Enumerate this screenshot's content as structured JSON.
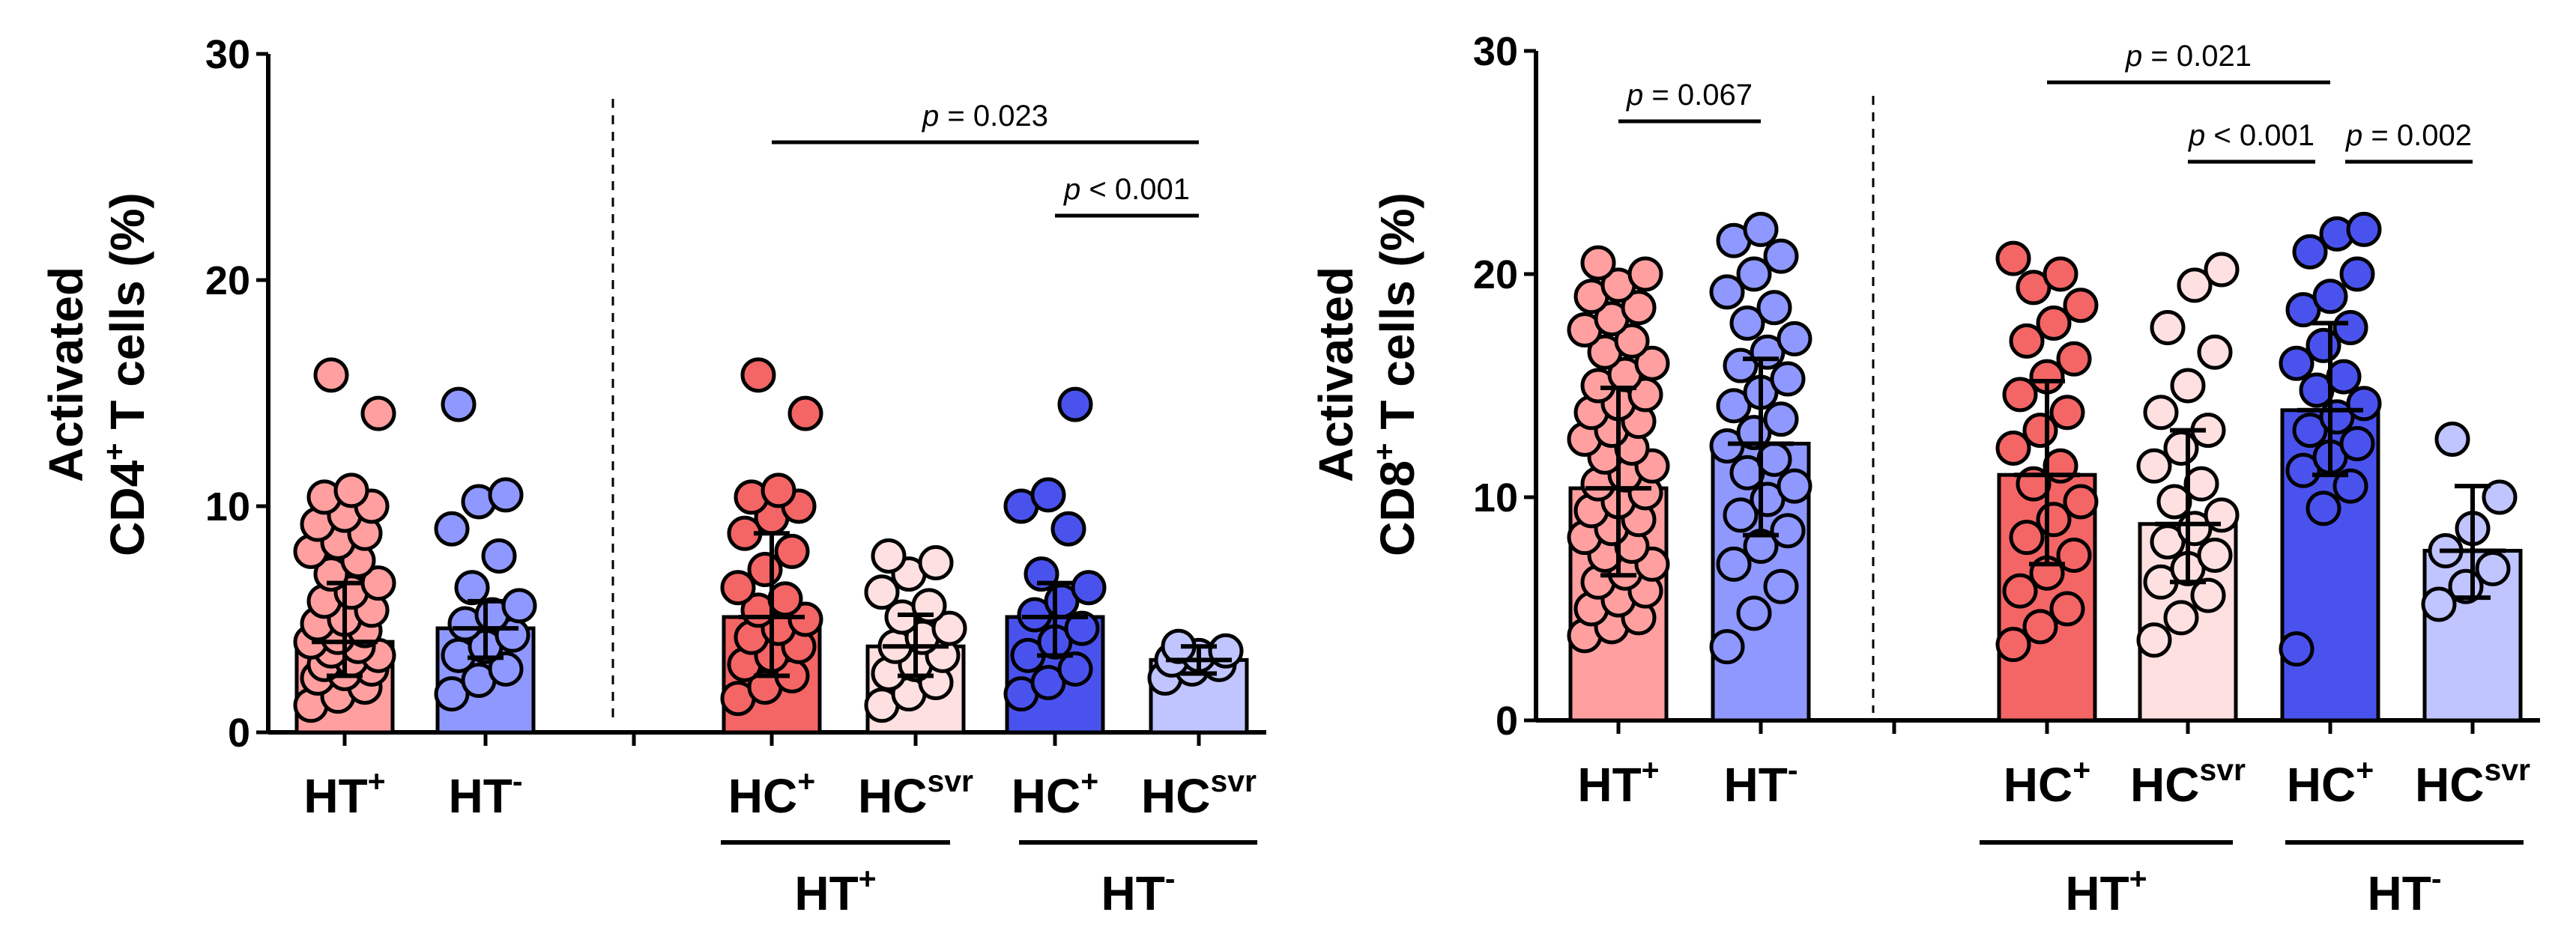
{
  "chart_data": [
    {
      "type": "bar",
      "panel": "left",
      "ylabel_line1": "Activated",
      "ylabel_line2_prefix": "CD4",
      "ylabel_line2_sup": "+",
      "ylabel_line2_suffix": " T cells (%)",
      "ylim": [
        0,
        30
      ],
      "yticks": [
        "0",
        "10",
        "20",
        "30"
      ],
      "categories": [
        {
          "label": "HT",
          "sup": "+",
          "mean": 4.0,
          "sd_low": 2.5,
          "sd_high": 6.6,
          "color": "#ff9f9f",
          "points": [
            1.2,
            1.6,
            2.0,
            2.4,
            2.6,
            2.8,
            3.0,
            3.2,
            3.4,
            3.6,
            3.8,
            4.0,
            4.2,
            4.5,
            4.8,
            5.0,
            5.4,
            5.8,
            6.2,
            6.6,
            7.0,
            7.6,
            8.0,
            8.4,
            8.8,
            9.2,
            9.6,
            10.0,
            10.4,
            10.7,
            14.1,
            15.8
          ]
        },
        {
          "label": "HT",
          "sup": "-",
          "mean": 4.6,
          "sd_low": 3.3,
          "sd_high": 5.8,
          "color": "#8f98ff",
          "points": [
            1.7,
            2.3,
            2.8,
            3.4,
            3.8,
            4.3,
            4.8,
            5.2,
            5.6,
            6.4,
            7.8,
            9.0,
            10.2,
            10.5,
            14.5
          ]
        },
        {
          "label": "HC",
          "sup": "+",
          "mean": 5.1,
          "sd_low": 2.5,
          "sd_high": 8.8,
          "color": "#f46565",
          "points": [
            1.5,
            2.0,
            2.5,
            3.0,
            3.4,
            3.8,
            4.2,
            4.6,
            5.0,
            5.4,
            5.9,
            6.4,
            7.2,
            8.0,
            8.8,
            9.5,
            10.0,
            10.4,
            10.7,
            14.1,
            15.8
          ]
        },
        {
          "label": "HC",
          "sup": "svr",
          "mean": 3.8,
          "sd_low": 2.5,
          "sd_high": 5.2,
          "color": "#ffe0e0",
          "points": [
            1.2,
            1.7,
            2.2,
            2.6,
            3.0,
            3.4,
            3.8,
            4.2,
            4.6,
            5.1,
            5.6,
            6.2,
            7.0,
            7.5,
            7.8
          ]
        },
        {
          "label": "HC",
          "sup": "+",
          "mean": 5.1,
          "sd_low": 3.4,
          "sd_high": 6.6,
          "color": "#4a52ee",
          "points": [
            1.7,
            2.2,
            2.8,
            3.4,
            4.0,
            4.6,
            5.2,
            5.8,
            6.4,
            7.0,
            9.0,
            10.0,
            10.5,
            14.5
          ]
        },
        {
          "label": "HC",
          "sup": "svr",
          "mean": 3.2,
          "sd_low": 2.6,
          "sd_high": 3.8,
          "color": "#c0c4ff",
          "points": [
            2.4,
            2.8,
            3.0,
            3.2,
            3.4,
            3.6,
            3.8
          ]
        }
      ],
      "comparisons": [
        {
          "text": "p = 0.023",
          "from": 2,
          "to": 5
        },
        {
          "text": "p < 0.001",
          "from": 4,
          "to": 5
        }
      ],
      "groups": [
        {
          "label": "HT",
          "sup": "+"
        },
        {
          "label": "HT",
          "sup": "-"
        }
      ]
    },
    {
      "type": "bar",
      "panel": "right",
      "ylabel_line1": "Activated",
      "ylabel_line2_prefix": "CD8",
      "ylabel_line2_sup": "+",
      "ylabel_line2_suffix": " T cells (%)",
      "ylim": [
        0,
        30
      ],
      "yticks": [
        "0",
        "10",
        "20",
        "30"
      ],
      "categories": [
        {
          "label": "HT",
          "sup": "+",
          "mean": 10.4,
          "sd_low": 6.5,
          "sd_high": 14.9,
          "color": "#ff9f9f",
          "points": [
            3.8,
            4.2,
            4.6,
            5.0,
            5.4,
            5.8,
            6.2,
            6.6,
            7.0,
            7.4,
            7.8,
            8.2,
            8.6,
            9.0,
            9.4,
            9.8,
            10.2,
            10.6,
            11.0,
            11.4,
            11.8,
            12.2,
            12.6,
            13.0,
            13.4,
            13.8,
            14.2,
            14.6,
            15.0,
            15.5,
            16.0,
            16.5,
            17.0,
            17.5,
            18.0,
            18.5,
            19.0,
            19.5,
            20.0,
            20.5
          ]
        },
        {
          "label": "HT",
          "sup": "-",
          "mean": 12.4,
          "sd_low": 8.3,
          "sd_high": 16.2,
          "color": "#8f98ff",
          "points": [
            3.3,
            4.8,
            6.0,
            7.0,
            7.8,
            8.5,
            9.2,
            9.9,
            10.5,
            11.1,
            11.7,
            12.3,
            12.9,
            13.5,
            14.1,
            14.7,
            15.3,
            15.9,
            16.5,
            17.1,
            17.8,
            18.5,
            19.2,
            20.0,
            20.8,
            21.5,
            22.0
          ]
        },
        {
          "label": "HC",
          "sup": "+",
          "mean": 11.0,
          "sd_low": 7.0,
          "sd_high": 15.2,
          "color": "#f46565",
          "points": [
            3.4,
            4.2,
            5.0,
            5.8,
            6.6,
            7.4,
            8.2,
            9.0,
            9.8,
            10.6,
            11.4,
            12.2,
            13.0,
            13.8,
            14.6,
            15.4,
            16.2,
            17.0,
            17.8,
            18.6,
            19.4,
            20.0,
            20.7
          ]
        },
        {
          "label": "HC",
          "sup": "svr",
          "mean": 8.8,
          "sd_low": 6.2,
          "sd_high": 13.0,
          "color": "#ffe0e0",
          "points": [
            3.6,
            4.6,
            5.6,
            6.2,
            6.8,
            7.4,
            8.0,
            8.6,
            9.2,
            9.8,
            10.6,
            11.4,
            12.2,
            13.0,
            13.8,
            15.0,
            16.5,
            17.6,
            19.5,
            20.2
          ]
        },
        {
          "label": "HC",
          "sup": "+",
          "mean": 13.9,
          "sd_low": 11.0,
          "sd_high": 17.8,
          "color": "#4a52ee",
          "points": [
            3.2,
            9.5,
            10.5,
            11.2,
            11.8,
            12.4,
            13.0,
            13.6,
            14.2,
            14.8,
            15.4,
            16.0,
            16.8,
            17.6,
            18.4,
            19.0,
            20.0,
            21.0,
            21.8,
            22.0
          ]
        },
        {
          "label": "HC",
          "sup": "svr",
          "mean": 7.6,
          "sd_low": 5.5,
          "sd_high": 10.5,
          "color": "#c0c4ff",
          "points": [
            5.2,
            6.0,
            6.8,
            7.6,
            8.6,
            10.0,
            12.6
          ]
        }
      ],
      "comparisons": [
        {
          "text": "p = 0.067",
          "from": 0,
          "to": 1
        },
        {
          "text": "p = 0.021",
          "from": 2,
          "to": 4
        },
        {
          "text": "p < 0.001",
          "from": 3,
          "to": 4
        },
        {
          "text": "p = 0.002",
          "from": 4,
          "to": 5
        }
      ],
      "groups": [
        {
          "label": "HT",
          "sup": "+"
        },
        {
          "label": "HT",
          "sup": "-"
        }
      ]
    }
  ]
}
